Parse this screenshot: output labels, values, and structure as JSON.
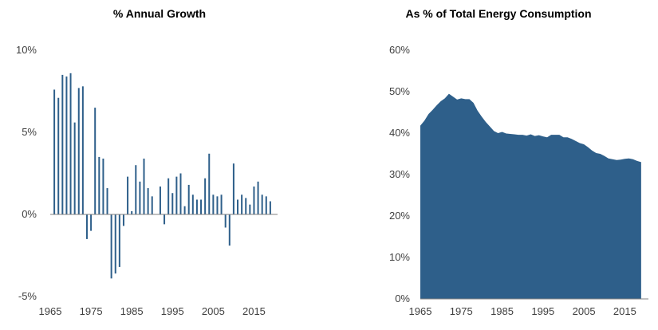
{
  "colors": {
    "series": "#2e5f8a",
    "axis": "#808080"
  },
  "chart_data": [
    {
      "type": "bar",
      "title": "% Annual Growth",
      "ylim": [
        -5,
        10
      ],
      "yticks": [
        10,
        5,
        0,
        -5
      ],
      "ytick_labels": [
        "10%",
        "5%",
        "0%",
        "-5%"
      ],
      "xticks": [
        1965,
        1975,
        1985,
        1995,
        2005,
        2015
      ],
      "xtick_labels": [
        "1965",
        "1975",
        "1985",
        "1995",
        "2005",
        "2015"
      ],
      "x": [
        1966,
        1967,
        1968,
        1969,
        1970,
        1971,
        1972,
        1973,
        1974,
        1975,
        1976,
        1977,
        1978,
        1979,
        1980,
        1981,
        1982,
        1983,
        1984,
        1985,
        1986,
        1987,
        1988,
        1989,
        1990,
        1991,
        1992,
        1993,
        1994,
        1995,
        1996,
        1997,
        1998,
        1999,
        2000,
        2001,
        2002,
        2003,
        2004,
        2005,
        2006,
        2007,
        2008,
        2009,
        2010,
        2011,
        2012,
        2013,
        2014,
        2015,
        2016,
        2017,
        2018,
        2019
      ],
      "values": [
        7.6,
        7.1,
        8.5,
        8.4,
        8.6,
        5.6,
        7.7,
        7.8,
        -1.5,
        -1.0,
        6.5,
        3.5,
        3.4,
        1.6,
        -3.9,
        -3.6,
        -3.2,
        -0.7,
        2.3,
        0.2,
        3.0,
        2.0,
        3.4,
        1.6,
        1.1,
        0.0,
        1.7,
        -0.6,
        2.2,
        1.3,
        2.3,
        2.5,
        0.5,
        1.8,
        1.2,
        0.9,
        0.9,
        2.2,
        3.7,
        1.2,
        1.1,
        1.2,
        -0.8,
        -1.9,
        3.1,
        0.9,
        1.2,
        1.0,
        0.6,
        1.7,
        2.0,
        1.2,
        1.1,
        0.8
      ]
    },
    {
      "type": "area",
      "title": "As % of Total Energy Consumption",
      "ylim": [
        0,
        60
      ],
      "yticks": [
        60,
        50,
        40,
        30,
        20,
        10,
        0
      ],
      "ytick_labels": [
        "60%",
        "50%",
        "40%",
        "30%",
        "20%",
        "10%",
        "0%"
      ],
      "xticks": [
        1965,
        1975,
        1985,
        1995,
        2005,
        2015
      ],
      "xtick_labels": [
        "1965",
        "1975",
        "1985",
        "1995",
        "2005",
        "2015"
      ],
      "x": [
        1965,
        1966,
        1967,
        1968,
        1969,
        1970,
        1971,
        1972,
        1973,
        1974,
        1975,
        1976,
        1977,
        1978,
        1979,
        1980,
        1981,
        1982,
        1983,
        1984,
        1985,
        1986,
        1987,
        1988,
        1989,
        1990,
        1991,
        1992,
        1993,
        1994,
        1995,
        1996,
        1997,
        1998,
        1999,
        2000,
        2001,
        2002,
        2003,
        2004,
        2005,
        2006,
        2007,
        2008,
        2009,
        2010,
        2011,
        2012,
        2013,
        2014,
        2015,
        2016,
        2017,
        2018,
        2019
      ],
      "values": [
        41.8,
        43.0,
        44.6,
        45.6,
        46.7,
        47.7,
        48.4,
        49.5,
        48.8,
        48.1,
        48.4,
        48.2,
        48.2,
        47.3,
        45.4,
        44.0,
        42.7,
        41.6,
        40.5,
        40.0,
        40.3,
        39.9,
        39.8,
        39.7,
        39.6,
        39.6,
        39.4,
        39.7,
        39.3,
        39.5,
        39.2,
        39.0,
        39.6,
        39.6,
        39.6,
        39.0,
        39.0,
        38.6,
        38.1,
        37.6,
        37.3,
        36.6,
        35.8,
        35.2,
        35.0,
        34.5,
        33.9,
        33.7,
        33.5,
        33.6,
        33.8,
        33.9,
        33.7,
        33.3,
        33.0
      ]
    }
  ]
}
